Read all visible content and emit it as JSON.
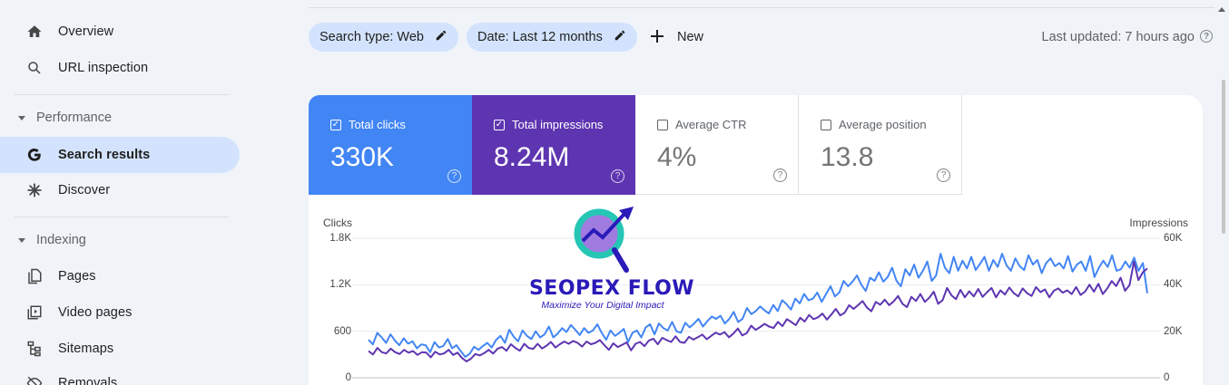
{
  "sidebar": {
    "items": [
      {
        "label": "Overview",
        "icon": "home-icon"
      },
      {
        "label": "URL inspection",
        "icon": "search-icon"
      }
    ],
    "performance": {
      "header": "Performance",
      "items": [
        {
          "label": "Search results",
          "icon": "google-g-icon",
          "active": true
        },
        {
          "label": "Discover",
          "icon": "asterisk-icon"
        }
      ]
    },
    "indexing": {
      "header": "Indexing",
      "items": [
        {
          "label": "Pages",
          "icon": "pages-icon"
        },
        {
          "label": "Video pages",
          "icon": "video-pages-icon"
        },
        {
          "label": "Sitemaps",
          "icon": "sitemap-icon"
        },
        {
          "label": "Removals",
          "icon": "removals-icon"
        }
      ]
    }
  },
  "toolbar": {
    "search_type": "Search type: Web",
    "date": "Date: Last 12 months",
    "new_label": "New",
    "last_updated": "Last updated: 7 hours ago"
  },
  "metrics": {
    "clicks": {
      "label": "Total clicks",
      "value": "330K",
      "checked": true,
      "color": "#4285f4"
    },
    "impressions": {
      "label": "Total impressions",
      "value": "8.24M",
      "checked": true,
      "color": "#5e35b1"
    },
    "ctr": {
      "label": "Average CTR",
      "value": "4%",
      "checked": false
    },
    "position": {
      "label": "Average position",
      "value": "13.8",
      "checked": false
    }
  },
  "logo": {
    "name": "SEOPEX FLOW",
    "tagline": "Maximize Your Digital  Impact"
  },
  "chart_data": {
    "type": "line",
    "left_axis": {
      "title": "Clicks",
      "ticks": [
        "1.8K",
        "1.2K",
        "600",
        "0"
      ],
      "range": [
        0,
        1800
      ]
    },
    "right_axis": {
      "title": "Impressions",
      "ticks": [
        "60K",
        "40K",
        "20K",
        "0"
      ],
      "range": [
        0,
        60000
      ]
    },
    "grid": true,
    "series": [
      {
        "name": "Clicks",
        "axis": "left",
        "color": "#4285f4",
        "values": [
          490,
          430,
          580,
          520,
          450,
          560,
          480,
          420,
          510,
          440,
          470,
          380,
          430,
          420,
          330,
          460,
          390,
          410,
          500,
          380,
          420,
          340,
          270,
          310,
          400,
          360,
          410,
          450,
          390,
          490,
          540,
          450,
          620,
          530,
          470,
          610,
          540,
          500,
          600,
          520,
          560,
          660,
          520,
          570,
          640,
          590,
          680,
          620,
          550,
          640,
          580,
          610,
          690,
          580,
          490,
          610,
          540,
          580,
          630,
          460,
          580,
          610,
          520,
          650,
          690,
          560,
          700,
          640,
          610,
          720,
          600,
          580,
          710,
          650,
          700,
          760,
          660,
          730,
          790,
          760,
          800,
          700,
          760,
          850,
          720,
          760,
          900,
          820,
          860,
          920,
          870,
          830,
          940,
          860,
          1000,
          950,
          880,
          1020,
          960,
          1080,
          1000,
          1020,
          1100,
          980,
          1080,
          1180,
          1050,
          1100,
          1250,
          1180,
          1240,
          1320,
          1200,
          1120,
          1290,
          1250,
          1360,
          1240,
          1300,
          1420,
          1250,
          1180,
          1400,
          1320,
          1460,
          1290,
          1380,
          1500,
          1250,
          1320,
          1600,
          1420,
          1350,
          1560,
          1380,
          1510,
          1410,
          1560,
          1390,
          1470,
          1560,
          1380,
          1520,
          1430,
          1600,
          1450,
          1380,
          1540,
          1440,
          1390,
          1580,
          1460,
          1520,
          1350,
          1480,
          1540,
          1440,
          1480,
          1410,
          1570,
          1370,
          1460,
          1500,
          1380,
          1570,
          1300,
          1420,
          1510,
          1430,
          1580,
          1380,
          1400,
          1500,
          1420,
          1550,
          1380,
          1480,
          1090
        ]
      },
      {
        "name": "Impressions",
        "axis": "right",
        "color": "#5e35b1",
        "values": [
          11500,
          10000,
          12800,
          11000,
          10500,
          12500,
          11000,
          10200,
          12000,
          10800,
          11500,
          9800,
          11000,
          10800,
          8800,
          11200,
          10000,
          10500,
          12000,
          9800,
          10800,
          8500,
          7000,
          8200,
          10200,
          9600,
          10600,
          12000,
          10400,
          12500,
          13200,
          11600,
          14400,
          12800,
          11600,
          14600,
          12800,
          12400,
          14600,
          12600,
          13800,
          15400,
          13000,
          14400,
          15600,
          14600,
          15800,
          15000,
          13400,
          15600,
          14400,
          15000,
          16200,
          14000,
          12000,
          14800,
          13200,
          14200,
          15200,
          11800,
          14600,
          15400,
          13600,
          16000,
          16800,
          14400,
          17200,
          16200,
          15400,
          17800,
          15400,
          15000,
          17600,
          16400,
          17400,
          18600,
          16600,
          18000,
          19400,
          18600,
          19600,
          17400,
          19000,
          21200,
          18200,
          19200,
          22400,
          20600,
          21800,
          23200,
          22000,
          21400,
          24000,
          22200,
          25200,
          24000,
          22600,
          25800,
          24200,
          27000,
          25200,
          26000,
          27600,
          25000,
          27200,
          29600,
          26800,
          28000,
          31200,
          29600,
          31200,
          33000,
          30200,
          28600,
          32600,
          31400,
          33600,
          31200,
          32800,
          35200,
          31800,
          30400,
          34800,
          33000,
          36000,
          32600,
          34400,
          37000,
          31800,
          33400,
          38600,
          35400,
          33800,
          37800,
          34600,
          37200,
          35000,
          38200,
          34800,
          36800,
          38600,
          34600,
          37600,
          35800,
          38800,
          36400,
          35000,
          38400,
          36400,
          35200,
          39000,
          36800,
          38000,
          34600,
          37400,
          38400,
          36600,
          37600,
          36000,
          39000,
          35600,
          37000,
          40000,
          37000,
          40400,
          36000,
          38400,
          41600,
          39400,
          43000,
          37400,
          39800,
          50000,
          42000,
          45400,
          47000
        ]
      }
    ]
  }
}
